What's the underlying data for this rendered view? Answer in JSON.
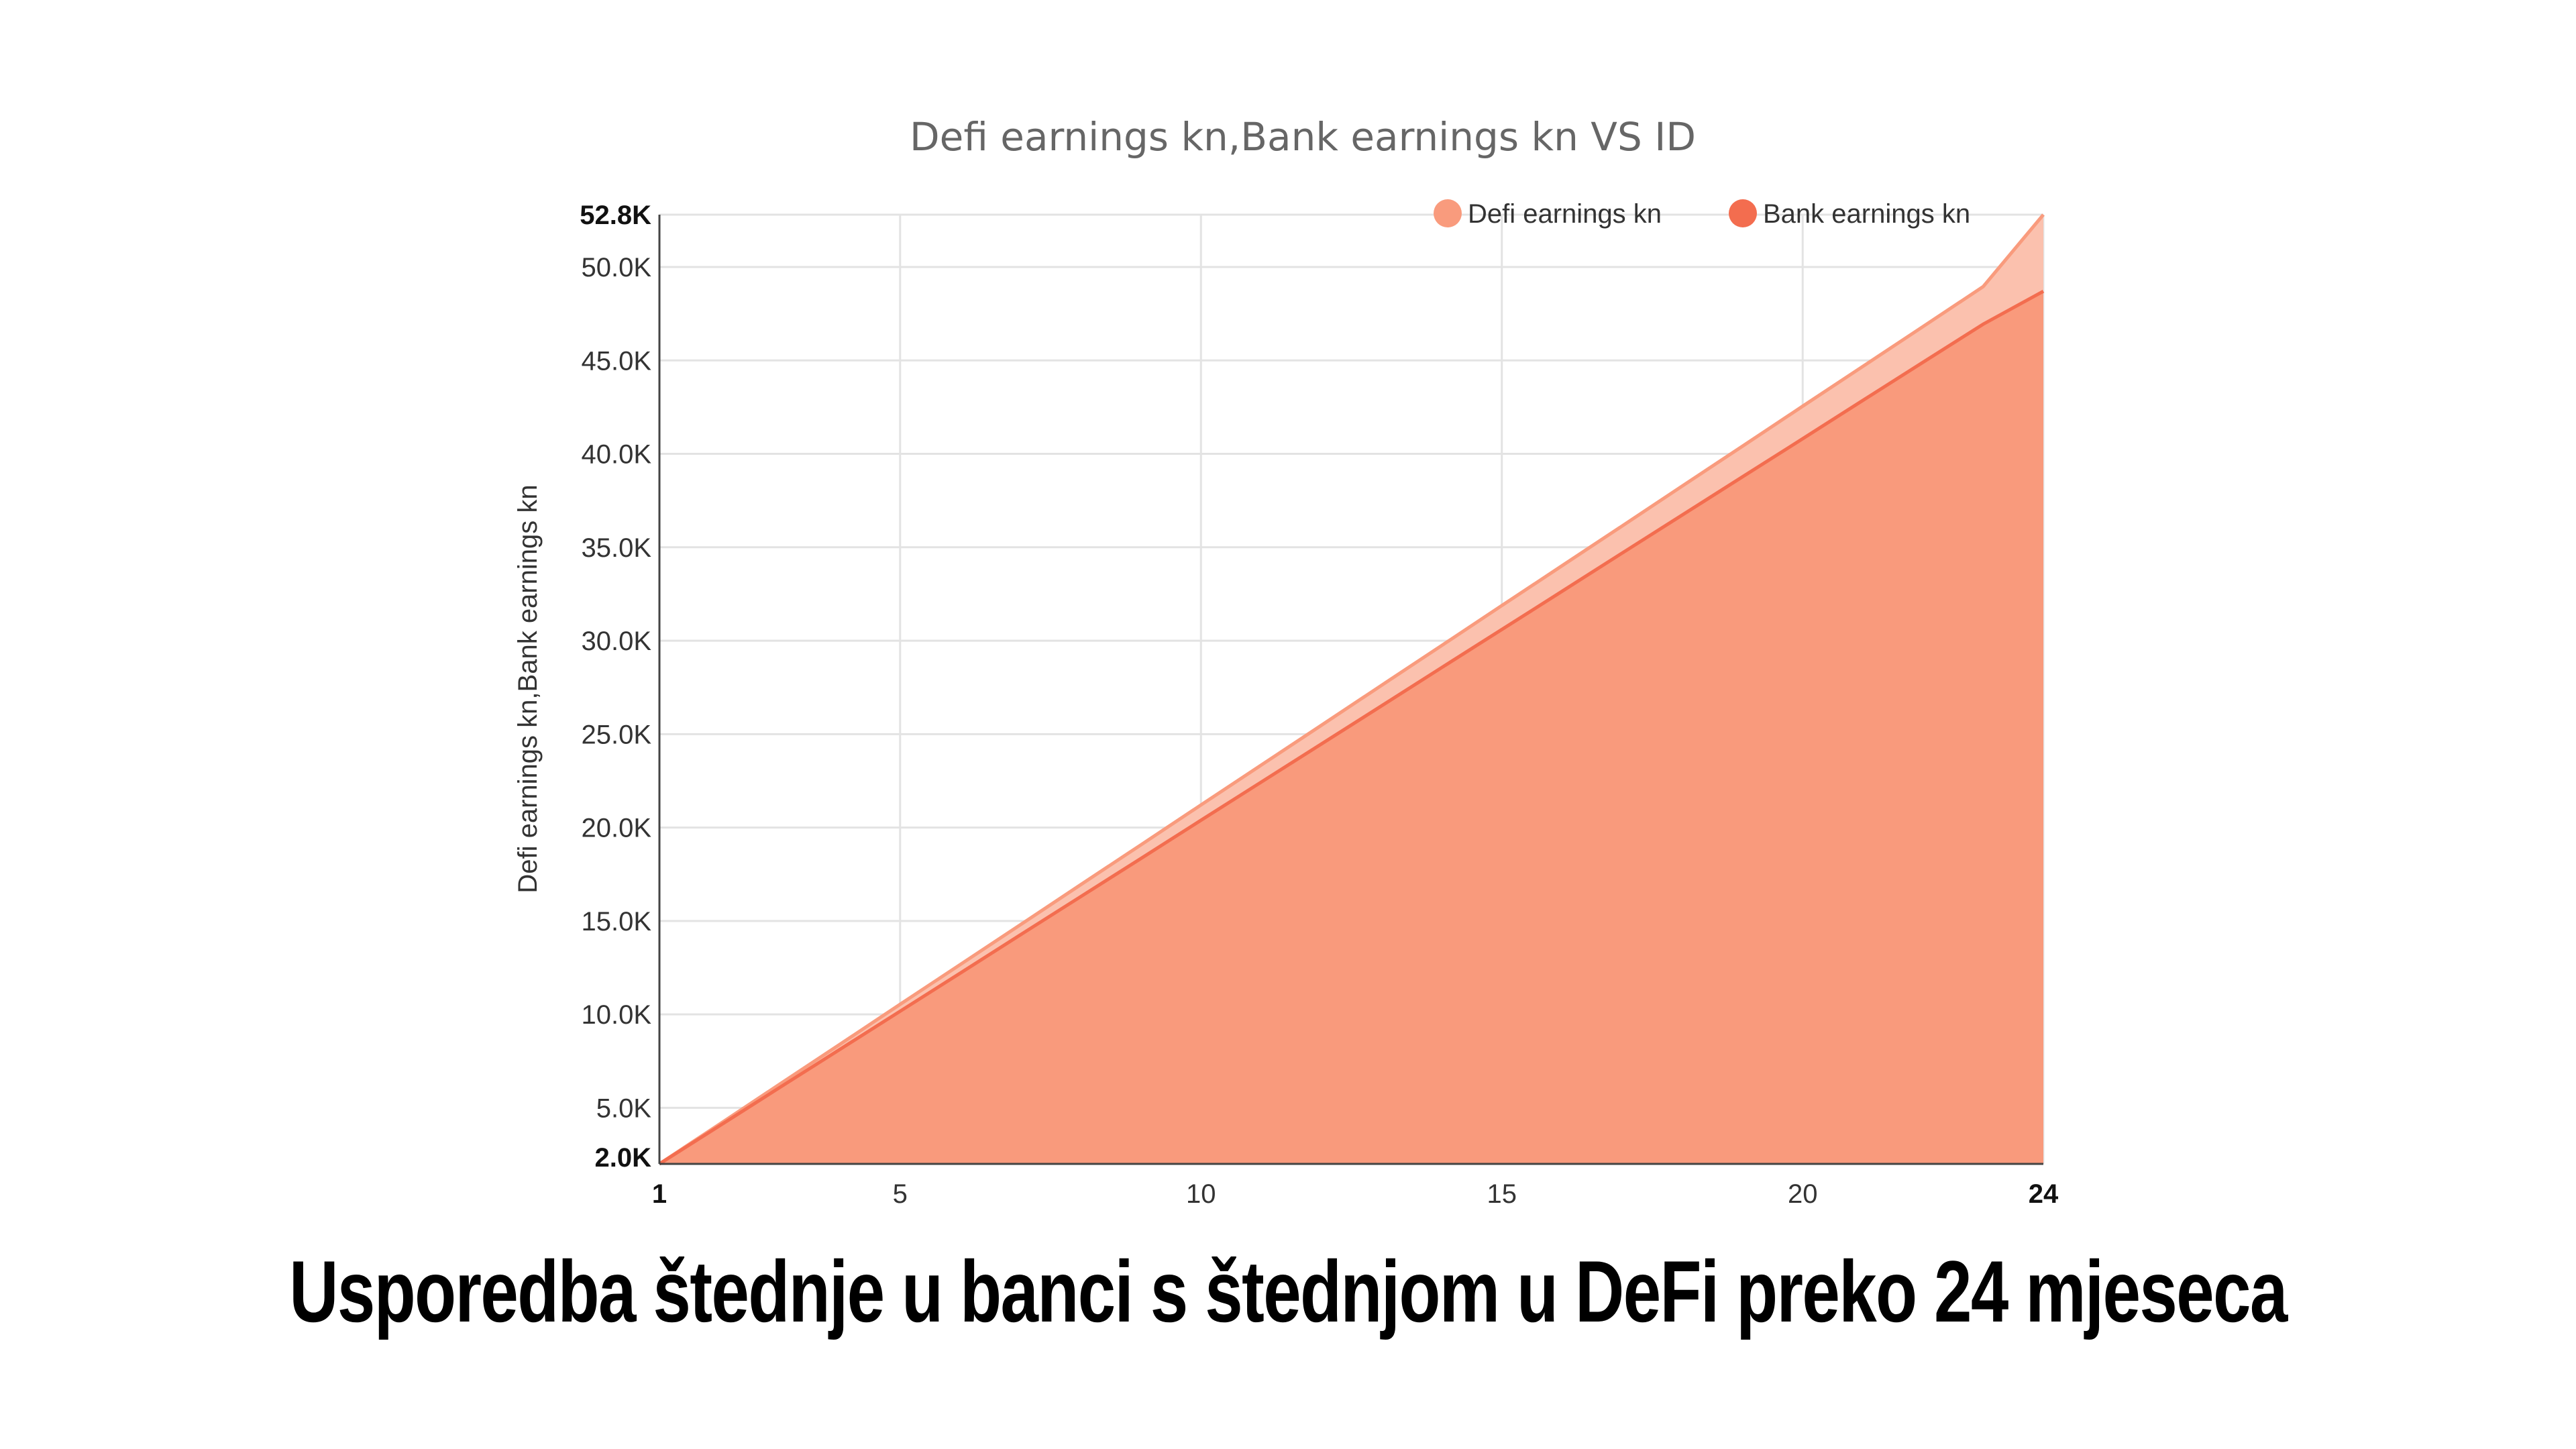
{
  "chart_data": {
    "type": "area",
    "title": "Defi earnings kn,Bank earnings kn VS ID",
    "xlabel": "",
    "ylabel": "Defi earnings kn,Bank earnings kn",
    "xlim": [
      1,
      24
    ],
    "ylim": [
      2000,
      52800
    ],
    "x_ticks": [
      1,
      5,
      10,
      15,
      20,
      24
    ],
    "y_ticks": [
      {
        "value": 2000,
        "label": "2.0K"
      },
      {
        "value": 5000,
        "label": "5.0K"
      },
      {
        "value": 10000,
        "label": "10.0K"
      },
      {
        "value": 15000,
        "label": "15.0K"
      },
      {
        "value": 20000,
        "label": "20.0K"
      },
      {
        "value": 25000,
        "label": "25.0K"
      },
      {
        "value": 30000,
        "label": "30.0K"
      },
      {
        "value": 35000,
        "label": "35.0K"
      },
      {
        "value": 40000,
        "label": "40.0K"
      },
      {
        "value": 45000,
        "label": "45.0K"
      },
      {
        "value": 50000,
        "label": "50.0K"
      },
      {
        "value": 52800,
        "label": "52.8K"
      }
    ],
    "grid": true,
    "legend_position": "top-right",
    "x": [
      1,
      2,
      3,
      4,
      5,
      6,
      7,
      8,
      9,
      10,
      11,
      12,
      13,
      14,
      15,
      16,
      17,
      18,
      19,
      20,
      21,
      22,
      23,
      24
    ],
    "series": [
      {
        "name": "Defi earnings kn",
        "color": "#f99b7d",
        "fill": "#fbc1ae",
        "values": [
          2000,
          4130,
          6270,
          8400,
          10540,
          12670,
          14800,
          16940,
          19070,
          21210,
          23340,
          25470,
          27610,
          29740,
          31880,
          34010,
          36140,
          38280,
          40410,
          42550,
          44680,
          46810,
          48950,
          52800
        ]
      },
      {
        "name": "Bank earnings kn",
        "color": "#f36d4f",
        "fill": "#f99a7c",
        "values": [
          2000,
          4040,
          6090,
          8130,
          10170,
          12210,
          14260,
          16300,
          18340,
          20390,
          22430,
          24470,
          26510,
          28560,
          30600,
          32640,
          34690,
          36730,
          38770,
          40810,
          42860,
          44900,
          46940,
          48700
        ]
      }
    ]
  },
  "caption": "Usporedba štednje u banci s štednjom u DeFi preko 24 mjeseca"
}
